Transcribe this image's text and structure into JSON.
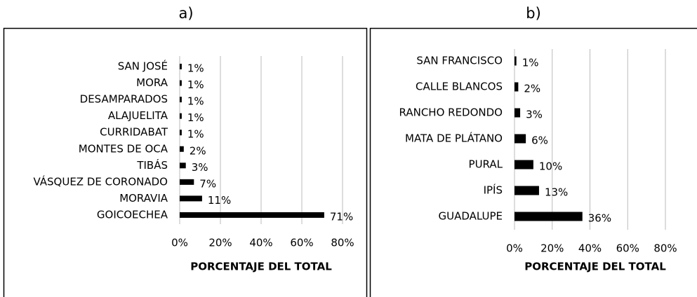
{
  "chart_data": [
    {
      "type": "bar",
      "orientation": "horizontal",
      "title": "a)",
      "categories": [
        "SAN JOSÉ",
        "MORA",
        "DESAMPARADOS",
        "ALAJUELITA",
        "CURRIDABAT",
        "MONTES DE OCA",
        "TIBÁS",
        "VÁSQUEZ DE CORONADO",
        "MORAVIA",
        "GOICOECHEA"
      ],
      "values": [
        1,
        1,
        1,
        1,
        1,
        2,
        3,
        7,
        11,
        71
      ],
      "value_labels": [
        "1%",
        "1%",
        "1%",
        "1%",
        "1%",
        "2%",
        "3%",
        "7%",
        "11%",
        "71%"
      ],
      "color": "#000000",
      "xlim": [
        0,
        80
      ],
      "xticks": [
        {
          "value": 0,
          "label": "0%"
        },
        {
          "value": 20,
          "label": "20%"
        },
        {
          "value": 40,
          "label": "40%"
        },
        {
          "value": 60,
          "label": "60%"
        },
        {
          "value": 80,
          "label": "80%"
        }
      ],
      "x_label": "PORCENTAJE DEL TOTAL",
      "grid": true
    },
    {
      "type": "bar",
      "orientation": "horizontal",
      "title": "b)",
      "categories": [
        "SAN FRANCISCO",
        "CALLE BLANCOS",
        "RANCHO REDONDO",
        "MATA DE PLÁTANO",
        "PURAL",
        "IPÍS",
        "GUADALUPE"
      ],
      "values": [
        1,
        2,
        3,
        6,
        10,
        13,
        36
      ],
      "value_labels": [
        "1%",
        "2%",
        "3%",
        "6%",
        "10%",
        "13%",
        "36%"
      ],
      "color": "#000000",
      "xlim": [
        0,
        80
      ],
      "xticks": [
        {
          "value": 0,
          "label": "0%"
        },
        {
          "value": 20,
          "label": "20%"
        },
        {
          "value": 40,
          "label": "40%"
        },
        {
          "value": 60,
          "label": "60%"
        },
        {
          "value": 80,
          "label": "80%"
        }
      ],
      "x_label": "PORCENTAJE DEL TOTAL",
      "grid": true
    }
  ]
}
